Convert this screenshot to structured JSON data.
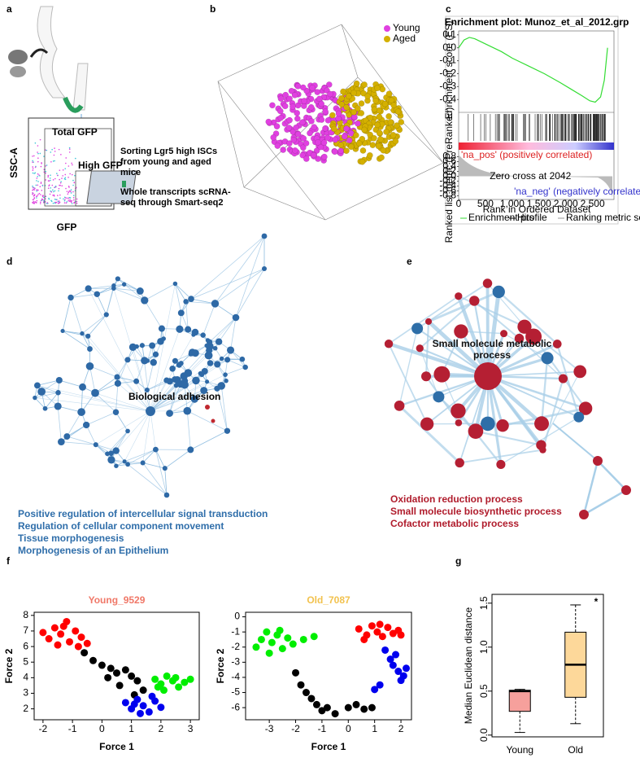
{
  "panel_labels": [
    "a",
    "b",
    "c",
    "d",
    "e",
    "f",
    "g"
  ],
  "panel_a": {
    "y_axis": "SSC-A",
    "x_axis": "GFP",
    "gate_1": "Total GFP",
    "gate_2": "High GFP",
    "step_1": "Sorting Lgr5 high ISCs from young and aged mice",
    "step_2": "Whole transcripts scRNA-seq through Smart-seq2"
  },
  "panel_b": {
    "legend": [
      {
        "name": "Young",
        "color": "#e040e0"
      },
      {
        "name": "Aged",
        "color": "#d4b000"
      }
    ]
  },
  "panel_d": {
    "hub_label": "Biological adhesion",
    "terms": [
      "Positive regulation of intercellular signal transduction",
      "Regulation of cellular component movement",
      "Tissue morphogenesis",
      "Morphogenesis of an Epithelium"
    ]
  },
  "panel_e": {
    "hub_label": "Small molecule metabolic process",
    "terms": [
      "Oxidation reduction process",
      "Small molecule biosynthetic process",
      "Cofactor metabolic process"
    ]
  },
  "chart_data": [
    {
      "type": "line",
      "title": "Enrichment plot: Munoz_et_al_2012.grp",
      "ylabel": "Enrichment score (ES)",
      "y2label": "Ranked list metric (PreRanked)",
      "xlabel": "Rank in Ordered Dataset",
      "x": [
        0,
        100,
        200,
        300,
        500,
        800,
        1000,
        1300,
        1600,
        1900,
        2100,
        2300,
        2450,
        2550,
        2650,
        2720,
        2780
      ],
      "values": [
        0.0,
        0.06,
        0.08,
        0.07,
        0.03,
        -0.03,
        -0.08,
        -0.14,
        -0.2,
        -0.27,
        -0.32,
        -0.37,
        -0.41,
        -0.42,
        -0.38,
        -0.25,
        0.0
      ],
      "color": "#33dd33",
      "xlim": [
        0,
        2900
      ],
      "xticks": [
        0,
        500,
        {
          "value": 1000,
          "label": "1,000"
        },
        {
          "value": 1500,
          "label": "1,500"
        },
        {
          "value": 2000,
          "label": "2,000"
        },
        {
          "value": 2500,
          "label": "2,500"
        }
      ],
      "ylim": [
        -0.48,
        0.13
      ],
      "yticks": [
        0.1,
        {
          "value": 0,
          "label": "0.0"
        },
        -0.1,
        -0.2,
        -0.3,
        -0.4
      ],
      "y2lim": [
        -0.95,
        0.95
      ],
      "y2ticks": [
        0.8,
        0.6,
        0.4,
        0.2,
        {
          "value": 0,
          "label": "0.0"
        },
        -0.2,
        -0.4,
        -0.6,
        -0.8
      ],
      "annotations": [
        "'na_pos' (positively correlated)",
        "Zero cross at 2042",
        "'na_neg' (negatively correlated)"
      ],
      "legend": [
        "Enrichment profile",
        "Hits",
        "Ranking metric scores"
      ]
    },
    {
      "type": "scatter",
      "title": "Young_9529",
      "title_color": "#f07868",
      "xlabel": "Force 1",
      "ylabel": "Force 2",
      "xlim": [
        -2.3,
        3.3
      ],
      "xticks": [
        -2,
        -1,
        0,
        1,
        2,
        3
      ],
      "ylim": [
        1.3,
        8.2
      ],
      "yticks": [
        2,
        3,
        4,
        5,
        6,
        7,
        8
      ],
      "series": [
        {
          "color": "#ff0000",
          "x": [
            -2,
            -1.8,
            -1.6,
            -1.4,
            -1.2,
            -1.1,
            -0.9,
            -0.7,
            -0.5,
            -1.5,
            -1.3,
            -0.8
          ],
          "values": [
            6.9,
            6.5,
            7.2,
            6.8,
            7.6,
            6.3,
            7.0,
            6.6,
            6.2,
            6.1,
            7.3,
            6.0
          ]
        },
        {
          "color": "#000000",
          "x": [
            -0.6,
            -0.3,
            0,
            0.3,
            0.5,
            0.8,
            1,
            1.2,
            0.6,
            1.4,
            1.1,
            0.2
          ],
          "values": [
            5.6,
            5.1,
            4.8,
            4.6,
            4.3,
            4.5,
            4.1,
            3.8,
            3.5,
            3.2,
            2.9,
            4.0
          ]
        },
        {
          "color": "#00ee00",
          "x": [
            1.8,
            2,
            2.2,
            2.4,
            2.6,
            2.8,
            3,
            2.1,
            1.9,
            2.5
          ],
          "values": [
            3.9,
            3.6,
            4.1,
            3.8,
            3.4,
            3.7,
            3.9,
            3.2,
            3.4,
            4.0
          ]
        },
        {
          "color": "#0000ee",
          "x": [
            0.8,
            1,
            1.2,
            1.4,
            1.6,
            1.8,
            2,
            1.3,
            1.1,
            1.7
          ],
          "values": [
            2.4,
            2.0,
            2.6,
            2.2,
            1.8,
            2.5,
            2.1,
            1.7,
            2.3,
            2.8
          ]
        }
      ]
    },
    {
      "type": "scatter",
      "title": "Old_7087",
      "title_color": "#f2c24e",
      "xlabel": "Force 1",
      "ylabel": "Force 2",
      "xlim": [
        -3.9,
        2.4
      ],
      "xticks": [
        -3,
        -2,
        -1,
        0,
        1,
        2
      ],
      "ylim": [
        -6.8,
        0.3
      ],
      "yticks": [
        -6,
        -5,
        -4,
        -3,
        -2,
        -1,
        0
      ],
      "series": [
        {
          "color": "#00ee00",
          "x": [
            -3.5,
            -3.3,
            -3.1,
            -2.9,
            -2.7,
            -2.5,
            -2.3,
            -2.1,
            -1.7,
            -1.3,
            -3.0,
            -2.6
          ],
          "values": [
            -2,
            -1.5,
            -1,
            -1.7,
            -1.2,
            -2.1,
            -1.4,
            -1.8,
            -1.5,
            -1.3,
            -2.4,
            -0.9
          ]
        },
        {
          "color": "#ff0000",
          "x": [
            0.4,
            0.7,
            0.9,
            1.1,
            1.3,
            1.5,
            1.7,
            1.9,
            0.6,
            1.2,
            2.0
          ],
          "values": [
            -0.8,
            -1.2,
            -0.6,
            -1.0,
            -1.3,
            -0.7,
            -1.1,
            -0.9,
            -1.5,
            -0.5,
            -1.2
          ]
        },
        {
          "color": "#000000",
          "x": [
            -2,
            -1.8,
            -1.6,
            -1.4,
            -1.2,
            -1,
            -0.8,
            -0.5,
            0,
            0.3,
            0.6,
            0.9
          ],
          "values": [
            -3.7,
            -4.5,
            -5.0,
            -5.4,
            -5.8,
            -6.2,
            -6.0,
            -6.4,
            -6.0,
            -5.8,
            -6.1,
            -6.0
          ]
        },
        {
          "color": "#0000ee",
          "x": [
            1.4,
            1.6,
            1.7,
            1.9,
            2.1,
            2.0,
            1.8,
            1.2,
            1.0,
            2.2
          ],
          "values": [
            -2.2,
            -2.8,
            -3.2,
            -3.6,
            -3.9,
            -4.2,
            -2.5,
            -4.5,
            -4.8,
            -3.4
          ]
        }
      ]
    },
    {
      "type": "box",
      "ylabel": "Median Euclidean distance",
      "categories": [
        "Young",
        "Old"
      ],
      "ylim": [
        -0.02,
        1.6
      ],
      "yticks": [
        {
          "value": 0,
          "label": "0.0"
        },
        {
          "value": 0.5,
          "label": "0.5"
        },
        {
          "value": 1,
          "label": "1.0"
        },
        {
          "value": 1.5,
          "label": "1.5"
        }
      ],
      "boxes": [
        {
          "min": 0.03,
          "q1": 0.27,
          "median": 0.5,
          "q3": 0.51,
          "max": 0.52,
          "color": "#f6a09c"
        },
        {
          "min": 0.13,
          "q1": 0.43,
          "median": 0.8,
          "q3": 1.17,
          "max": 1.48,
          "color": "#fdd89a"
        }
      ],
      "annotation": "*"
    }
  ]
}
